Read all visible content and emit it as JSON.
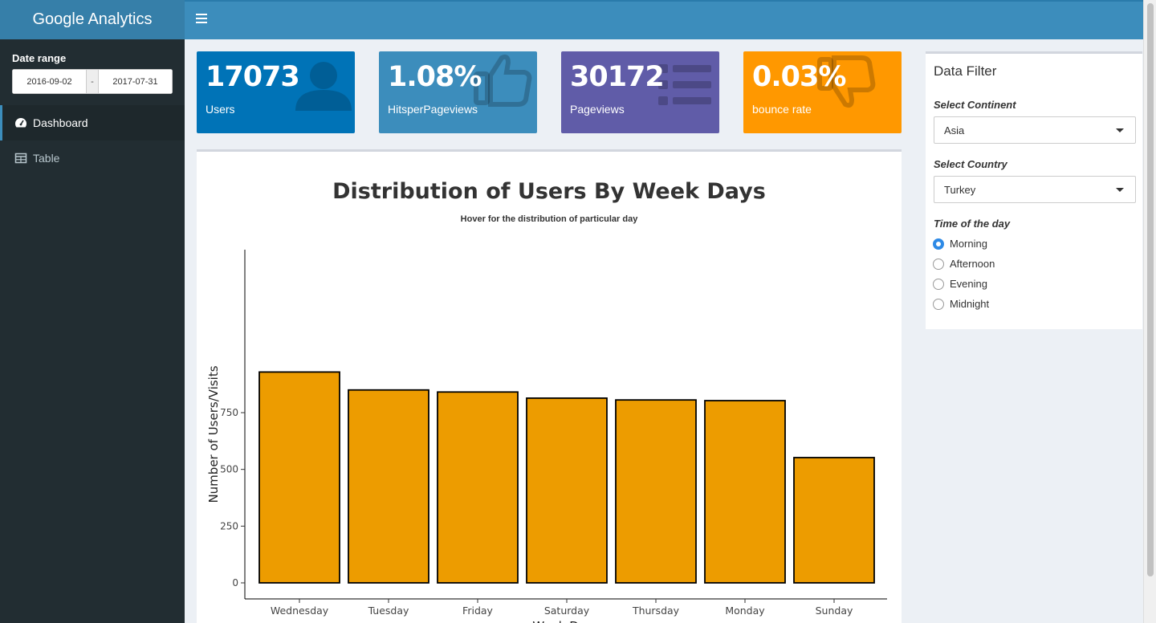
{
  "header": {
    "app_title": "Google Analytics"
  },
  "sidebar": {
    "date_range_label": "Date range",
    "date_start": "2016-09-02",
    "date_separator": "-",
    "date_end": "2017-07-31",
    "items": [
      {
        "label": "Dashboard",
        "icon": "dashboard-icon",
        "active": true
      },
      {
        "label": "Table",
        "icon": "table-icon",
        "active": false
      }
    ]
  },
  "infoboxes": [
    {
      "value": "17073",
      "label": "Users",
      "color": "#0073b7",
      "icon": "user-icon"
    },
    {
      "value": "1.08%",
      "label": "HitsperPageviews",
      "color": "#3c8dbc",
      "icon": "thumbs-up-icon"
    },
    {
      "value": "30172",
      "label": "Pageviews",
      "color": "#605ca8",
      "icon": "list-icon"
    },
    {
      "value": "0.03%",
      "label": "bounce rate",
      "color": "#ff9800",
      "icon": "thumbs-down-icon"
    }
  ],
  "filter": {
    "title": "Data Filter",
    "continent_label": "Select Continent",
    "continent_value": "Asia",
    "country_label": "Select Country",
    "country_value": "Turkey",
    "time_label": "Time of the day",
    "time_options": [
      "Morning",
      "Afternoon",
      "Evening",
      "Midnight"
    ],
    "time_selected": "Morning"
  },
  "chart_data": {
    "type": "bar",
    "title": "Distribution of Users By Week Days",
    "subtitle": "Hover for the distribution of particular day",
    "xlabel": "Week Days",
    "ylabel": "Number of Users/Visits",
    "categories": [
      "Wednesday",
      "Tuesday",
      "Friday",
      "Saturday",
      "Thursday",
      "Monday",
      "Sunday"
    ],
    "values": [
      929,
      850,
      841,
      814,
      806,
      803,
      552
    ],
    "yticks": [
      0,
      250,
      500,
      750
    ],
    "ylim": [
      -40,
      970
    ],
    "bar_color": "#ed9c00",
    "grid": false
  }
}
